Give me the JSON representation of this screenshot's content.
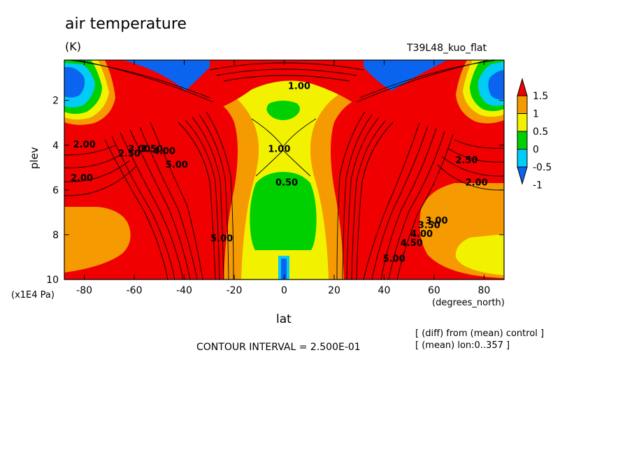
{
  "chart_data": {
    "type": "heatmap",
    "title": "air temperature",
    "units": "(K)",
    "experiment": "T39L48_kuo_flat",
    "xlabel": "lat",
    "xunits": "(degrees_north)",
    "ylabel": "plev",
    "yunits": "(x1E4 Pa)",
    "xlim": [
      -88,
      88
    ],
    "ylim": [
      10,
      0.2
    ],
    "x_ticks": [
      -80,
      -60,
      -40,
      -20,
      0,
      20,
      40,
      60,
      80
    ],
    "x_tick_labels": [
      "-80",
      "-60",
      "-40",
      "-20",
      "0",
      "20",
      "40",
      "60",
      "80"
    ],
    "y_ticks": [
      2,
      4,
      6,
      8,
      10
    ],
    "y_tick_labels": [
      "2",
      "4",
      "6",
      "8",
      "10"
    ],
    "levels": [
      -1,
      -0.5,
      0,
      0.5,
      1,
      1.5
    ],
    "colorbar_labels": [
      "1.5",
      "1",
      "0.5",
      "0",
      "-0.5",
      "-1"
    ],
    "colors": [
      "#0a64f0",
      "#00ccf6",
      "#00cf00",
      "#f2f200",
      "#f59a00",
      "#f00000"
    ],
    "contour_interval": "CONTOUR INTERVAL = 2.500E-01",
    "contour_labels": [
      {
        "text": "2.00",
        "x": -80,
        "y": 4.1
      },
      {
        "text": "2.00",
        "x": -81,
        "y": 5.6
      },
      {
        "text": "2.50",
        "x": -62,
        "y": 4.5
      },
      {
        "text": "3.00",
        "x": -58,
        "y": 4.3
      },
      {
        "text": "3.50",
        "x": -53,
        "y": 4.3
      },
      {
        "text": "4.00",
        "x": -48,
        "y": 4.4
      },
      {
        "text": "5.00",
        "x": -43,
        "y": 5.0
      },
      {
        "text": "0.50",
        "x": 1,
        "y": 5.8
      },
      {
        "text": "1.00",
        "x": -2,
        "y": 4.3
      },
      {
        "text": "1.00",
        "x": 6,
        "y": 1.5
      },
      {
        "text": "2.50",
        "x": 73,
        "y": 4.8
      },
      {
        "text": "2.00",
        "x": 77,
        "y": 5.8
      },
      {
        "text": "3.50",
        "x": 58,
        "y": 7.7
      },
      {
        "text": "3.00",
        "x": 61,
        "y": 7.5
      },
      {
        "text": "4.00",
        "x": 55,
        "y": 8.1
      },
      {
        "text": "4.50",
        "x": 51,
        "y": 8.5
      },
      {
        "text": "5.00",
        "x": 44,
        "y": 9.2
      },
      {
        "text": "5.00",
        "x": -25,
        "y": 8.3
      }
    ],
    "notes": [
      "[ (diff) from (mean) control ]",
      "[ (mean) lon:0..357 ]"
    ]
  }
}
